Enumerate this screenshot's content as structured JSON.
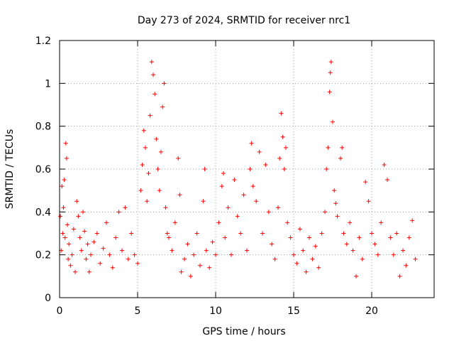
{
  "chart_data": {
    "type": "scatter",
    "title": "Day 273 of 2024, SRMTID for receiver nrc1",
    "xlabel": "GPS time / hours",
    "ylabel": "SRMTID / TECUs",
    "xlim": [
      0,
      24
    ],
    "ylim": [
      0,
      1.2
    ],
    "xticks": [
      0,
      5,
      10,
      15,
      20
    ],
    "xtick_labels": [
      "0",
      "5",
      "10",
      "15",
      "20"
    ],
    "yticks": [
      0,
      0.2,
      0.4,
      0.6,
      0.8,
      1.0,
      1.2
    ],
    "ytick_labels": [
      "0",
      "0.2",
      "0.4",
      "0.6",
      "0.8",
      "1",
      "1.2"
    ],
    "grid": true,
    "marker": "+",
    "series_color": "#ff0000",
    "series": [
      {
        "name": "SRMTID",
        "points": [
          [
            0.05,
            0.38
          ],
          [
            0.1,
            0.22
          ],
          [
            0.15,
            0.52
          ],
          [
            0.2,
            0.3
          ],
          [
            0.25,
            0.42
          ],
          [
            0.3,
            0.55
          ],
          [
            0.35,
            0.28
          ],
          [
            0.4,
            0.72
          ],
          [
            0.45,
            0.65
          ],
          [
            0.5,
            0.34
          ],
          [
            0.55,
            0.18
          ],
          [
            0.6,
            0.25
          ],
          [
            0.7,
            0.15
          ],
          [
            0.8,
            0.2
          ],
          [
            0.9,
            0.32
          ],
          [
            1.0,
            0.12
          ],
          [
            1.1,
            0.45
          ],
          [
            1.2,
            0.38
          ],
          [
            1.3,
            0.28
          ],
          [
            1.4,
            0.22
          ],
          [
            1.5,
            0.4
          ],
          [
            1.6,
            0.31
          ],
          [
            1.7,
            0.18
          ],
          [
            1.8,
            0.25
          ],
          [
            1.9,
            0.12
          ],
          [
            2.0,
            0.2
          ],
          [
            2.2,
            0.26
          ],
          [
            2.4,
            0.3
          ],
          [
            2.6,
            0.16
          ],
          [
            2.8,
            0.23
          ],
          [
            3.0,
            0.35
          ],
          [
            3.2,
            0.2
          ],
          [
            3.4,
            0.14
          ],
          [
            3.6,
            0.28
          ],
          [
            3.8,
            0.4
          ],
          [
            4.0,
            0.22
          ],
          [
            4.2,
            0.42
          ],
          [
            4.4,
            0.18
          ],
          [
            4.6,
            0.3
          ],
          [
            4.8,
            0.2
          ],
          [
            5.0,
            0.16
          ],
          [
            5.2,
            0.5
          ],
          [
            5.3,
            0.62
          ],
          [
            5.4,
            0.78
          ],
          [
            5.5,
            0.7
          ],
          [
            5.6,
            0.45
          ],
          [
            5.7,
            0.58
          ],
          [
            5.8,
            0.85
          ],
          [
            5.9,
            1.1
          ],
          [
            6.0,
            1.04
          ],
          [
            6.1,
            0.95
          ],
          [
            6.2,
            0.74
          ],
          [
            6.3,
            0.6
          ],
          [
            6.4,
            0.5
          ],
          [
            6.5,
            0.68
          ],
          [
            6.6,
            0.89
          ],
          [
            6.7,
            1.0
          ],
          [
            6.8,
            0.42
          ],
          [
            6.9,
            0.3
          ],
          [
            7.0,
            0.28
          ],
          [
            7.2,
            0.22
          ],
          [
            7.4,
            0.35
          ],
          [
            7.6,
            0.65
          ],
          [
            7.7,
            0.48
          ],
          [
            7.8,
            0.12
          ],
          [
            8.0,
            0.18
          ],
          [
            8.2,
            0.25
          ],
          [
            8.4,
            0.1
          ],
          [
            8.6,
            0.2
          ],
          [
            8.8,
            0.3
          ],
          [
            9.0,
            0.15
          ],
          [
            9.2,
            0.45
          ],
          [
            9.3,
            0.6
          ],
          [
            9.4,
            0.22
          ],
          [
            9.6,
            0.14
          ],
          [
            9.8,
            0.26
          ],
          [
            10.0,
            0.2
          ],
          [
            10.2,
            0.35
          ],
          [
            10.4,
            0.52
          ],
          [
            10.5,
            0.58
          ],
          [
            10.6,
            0.28
          ],
          [
            10.8,
            0.42
          ],
          [
            11.0,
            0.2
          ],
          [
            11.2,
            0.55
          ],
          [
            11.4,
            0.38
          ],
          [
            11.6,
            0.3
          ],
          [
            11.8,
            0.48
          ],
          [
            12.0,
            0.22
          ],
          [
            12.2,
            0.6
          ],
          [
            12.3,
            0.72
          ],
          [
            12.4,
            0.52
          ],
          [
            12.6,
            0.45
          ],
          [
            12.8,
            0.68
          ],
          [
            13.0,
            0.3
          ],
          [
            13.2,
            0.62
          ],
          [
            13.4,
            0.4
          ],
          [
            13.6,
            0.25
          ],
          [
            13.8,
            0.18
          ],
          [
            14.0,
            0.42
          ],
          [
            14.1,
            0.65
          ],
          [
            14.2,
            0.86
          ],
          [
            14.3,
            0.75
          ],
          [
            14.4,
            0.6
          ],
          [
            14.5,
            0.7
          ],
          [
            14.6,
            0.35
          ],
          [
            14.8,
            0.28
          ],
          [
            15.0,
            0.2
          ],
          [
            15.2,
            0.16
          ],
          [
            15.4,
            0.32
          ],
          [
            15.6,
            0.22
          ],
          [
            15.8,
            0.12
          ],
          [
            16.0,
            0.28
          ],
          [
            16.2,
            0.18
          ],
          [
            16.4,
            0.24
          ],
          [
            16.6,
            0.14
          ],
          [
            16.8,
            0.3
          ],
          [
            17.0,
            0.4
          ],
          [
            17.1,
            0.6
          ],
          [
            17.2,
            0.7
          ],
          [
            17.3,
            0.96
          ],
          [
            17.35,
            1.05
          ],
          [
            17.4,
            1.1
          ],
          [
            17.5,
            0.82
          ],
          [
            17.6,
            0.5
          ],
          [
            17.7,
            0.44
          ],
          [
            17.8,
            0.38
          ],
          [
            18.0,
            0.65
          ],
          [
            18.1,
            0.7
          ],
          [
            18.2,
            0.3
          ],
          [
            18.4,
            0.25
          ],
          [
            18.6,
            0.35
          ],
          [
            18.8,
            0.22
          ],
          [
            19.0,
            0.1
          ],
          [
            19.2,
            0.28
          ],
          [
            19.4,
            0.18
          ],
          [
            19.6,
            0.54
          ],
          [
            19.8,
            0.45
          ],
          [
            20.0,
            0.3
          ],
          [
            20.2,
            0.25
          ],
          [
            20.4,
            0.2
          ],
          [
            20.6,
            0.35
          ],
          [
            20.8,
            0.62
          ],
          [
            21.0,
            0.55
          ],
          [
            21.2,
            0.28
          ],
          [
            21.4,
            0.2
          ],
          [
            21.6,
            0.3
          ],
          [
            21.8,
            0.1
          ],
          [
            22.0,
            0.22
          ],
          [
            22.2,
            0.15
          ],
          [
            22.4,
            0.28
          ],
          [
            22.6,
            0.36
          ],
          [
            22.8,
            0.18
          ]
        ]
      }
    ]
  }
}
